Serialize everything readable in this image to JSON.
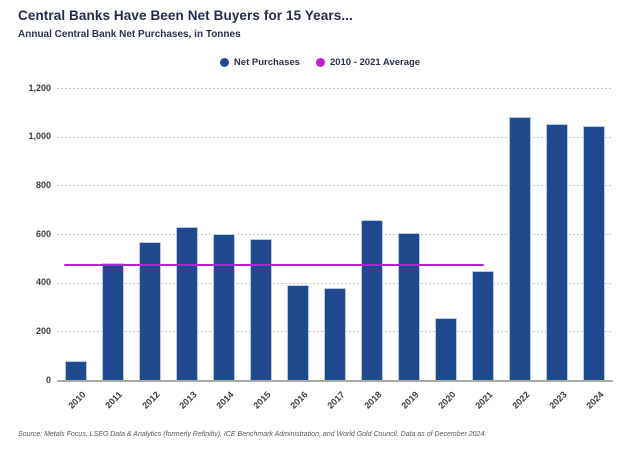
{
  "header": {
    "title": "Central Banks Have Been Net Buyers for 15 Years...",
    "subtitle": "Annual Central Bank Net Purchases, in Tonnes"
  },
  "legend": {
    "items": [
      {
        "label": "Net Purchases",
        "color": "#1f4b8e"
      },
      {
        "label": "2010 - 2021 Average",
        "color": "#bb22cc"
      }
    ]
  },
  "chart_data": {
    "type": "bar",
    "title": "Central Banks Have Been Net Buyers for 15 Years...",
    "subtitle": "Annual Central Bank Net Purchases, in Tonnes",
    "series_name": "Net Purchases",
    "categories": [
      "2010",
      "2011",
      "2012",
      "2013",
      "2014",
      "2015",
      "2016",
      "2017",
      "2018",
      "2019",
      "2020",
      "2021",
      "2022",
      "2023",
      "2024"
    ],
    "values": [
      79,
      481,
      569,
      629,
      601,
      580,
      390,
      378,
      656,
      605,
      255,
      450,
      1082,
      1051,
      1045
    ],
    "unit": "tonnes",
    "xlabel": "",
    "ylabel": "",
    "ylim": [
      0,
      1200
    ],
    "yticks": [
      "0",
      "200",
      "400",
      "600",
      "800",
      "1,000",
      "1,200"
    ],
    "grid": "horizontal-dashed",
    "legend_position": "top-center",
    "bar_color": "#1f4b8e",
    "bar_edge_color": "#b9cbe7",
    "average_line": {
      "label": "2010 - 2021 Average",
      "value": 473,
      "start_category": "2010",
      "end_category": "2021",
      "color": "#bb22cc"
    }
  },
  "footer": {
    "source": "Source: Metals Focus, LSEG Data & Analytics (formerly Refinitiv), ICE Benchmark Administration, and World Gold Council. Data as of December 2024."
  }
}
